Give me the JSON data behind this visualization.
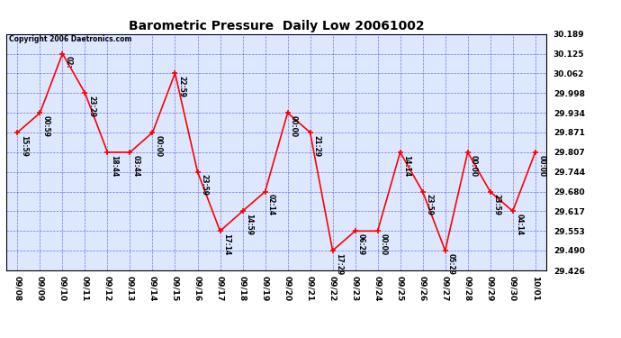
{
  "title": "Barometric Pressure  Daily Low 20061002",
  "copyright": "Copyright 2006 Daetronics.com",
  "x_labels": [
    "09/08",
    "09/09",
    "09/10",
    "09/11",
    "09/12",
    "09/13",
    "09/14",
    "09/15",
    "09/16",
    "09/17",
    "09/18",
    "09/19",
    "09/20",
    "09/21",
    "09/22",
    "09/23",
    "09/24",
    "09/25",
    "09/26",
    "09/27",
    "09/28",
    "09/29",
    "09/30",
    "10/01"
  ],
  "y_values": [
    29.871,
    29.934,
    30.125,
    29.998,
    29.807,
    29.807,
    29.871,
    30.062,
    29.744,
    29.553,
    29.617,
    29.68,
    29.934,
    29.871,
    29.49,
    29.553,
    29.553,
    29.807,
    29.68,
    29.49,
    29.807,
    29.68,
    29.617,
    29.807
  ],
  "annotations": [
    "15:59",
    "00:59",
    "02:",
    "23:29",
    "18:44",
    "03:44",
    "00:00",
    "22:59",
    "23:59",
    "17:14",
    "14:59",
    "02:14",
    "00:00",
    "21:29",
    "17:29",
    "06:29",
    "00:00",
    "14:14",
    "23:59",
    "05:29",
    "00:00",
    "23:59",
    "04:14",
    "00:00"
  ],
  "ylim_min": 29.426,
  "ylim_max": 30.189,
  "y_ticks": [
    29.426,
    29.49,
    29.553,
    29.617,
    29.68,
    29.744,
    29.807,
    29.871,
    29.934,
    29.998,
    30.062,
    30.125,
    30.189
  ],
  "line_color": "red",
  "marker_color": "red",
  "bg_color": "#ffffff",
  "plot_bg_color": "#dde8ff",
  "grid_color": "#0000cc",
  "grid_style": "--",
  "title_fontsize": 10,
  "annotation_fontsize": 5.5,
  "tick_fontsize": 6.5,
  "copyright_fontsize": 5.5
}
